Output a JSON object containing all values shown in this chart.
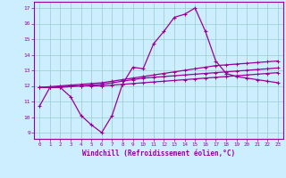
{
  "xlabel": "Windchill (Refroidissement éolien,°C)",
  "bg_color": "#cceeff",
  "line_color": "#990099",
  "grid_color": "#99cccc",
  "x_ticks": [
    0,
    1,
    2,
    3,
    4,
    5,
    6,
    7,
    8,
    9,
    10,
    11,
    12,
    13,
    14,
    15,
    16,
    17,
    18,
    19,
    20,
    21,
    22,
    23
  ],
  "y_ticks": [
    9,
    10,
    11,
    12,
    13,
    14,
    15,
    16,
    17
  ],
  "ylim": [
    8.6,
    17.4
  ],
  "xlim": [
    -0.5,
    23.5
  ],
  "line1": [
    10.7,
    11.9,
    11.9,
    11.3,
    10.1,
    9.5,
    9.0,
    10.1,
    12.1,
    13.2,
    13.1,
    14.7,
    15.5,
    16.4,
    16.6,
    17.0,
    15.5,
    13.6,
    12.8,
    12.6,
    12.5,
    12.4,
    12.3,
    12.2
  ],
  "line2": [
    11.9,
    11.95,
    12.0,
    12.05,
    12.1,
    12.15,
    12.2,
    12.3,
    12.4,
    12.5,
    12.6,
    12.7,
    12.8,
    12.9,
    13.0,
    13.1,
    13.2,
    13.3,
    13.35,
    13.4,
    13.45,
    13.5,
    13.55,
    13.6
  ],
  "line3": [
    11.9,
    11.9,
    11.95,
    12.0,
    12.0,
    12.05,
    12.1,
    12.2,
    12.3,
    12.4,
    12.5,
    12.55,
    12.6,
    12.65,
    12.7,
    12.75,
    12.8,
    12.85,
    12.9,
    12.95,
    13.0,
    13.05,
    13.1,
    13.15
  ],
  "line4": [
    11.9,
    11.9,
    11.9,
    11.95,
    12.0,
    12.0,
    12.0,
    12.05,
    12.1,
    12.15,
    12.2,
    12.25,
    12.3,
    12.35,
    12.4,
    12.45,
    12.5,
    12.55,
    12.6,
    12.65,
    12.7,
    12.75,
    12.8,
    12.85
  ]
}
